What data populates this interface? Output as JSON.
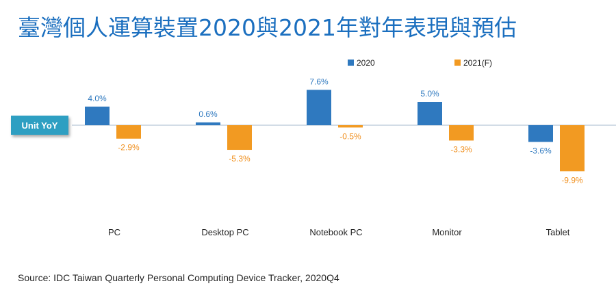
{
  "title": "臺灣個人運算裝置2020與2021年對年表現與預估",
  "unit_label": "Unit YoY",
  "source": "Source: IDC Taiwan Quarterly Personal Computing Device Tracker, 2020Q4",
  "colors": {
    "series_2020": "#2f79bf",
    "series_2021": "#f29a22",
    "title": "#1b6fbf",
    "badge": "#2e9fc2"
  },
  "chart_data": {
    "type": "bar",
    "categories": [
      "PC",
      "Desktop PC",
      "Notebook PC",
      "Monitor",
      "Tablet"
    ],
    "series": [
      {
        "name": "2020",
        "values": [
          4.0,
          0.6,
          7.6,
          5.0,
          -3.6
        ],
        "labels": [
          "4.0%",
          "0.6%",
          "7.6%",
          "5.0%",
          "-3.6%"
        ]
      },
      {
        "name": "2021(F)",
        "values": [
          -2.9,
          -5.3,
          -0.5,
          -3.3,
          -9.9
        ],
        "labels": [
          "-2.9%",
          "-5.3%",
          "-0.5%",
          "-3.3%",
          "-9.9%"
        ]
      }
    ],
    "ylabel": "Unit YoY",
    "unit": "%",
    "legend": "top",
    "grid": false
  }
}
